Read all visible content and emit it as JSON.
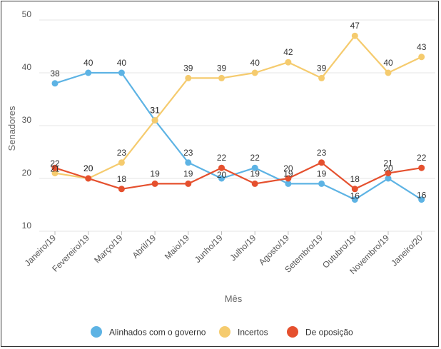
{
  "chart_data": {
    "type": "line",
    "title": "",
    "xlabel": "Mês",
    "ylabel": "Senadores",
    "ylim": [
      10,
      50
    ],
    "yticks": [
      10,
      20,
      30,
      40,
      50
    ],
    "grid": "horizontal",
    "legend_position": "bottom",
    "categories": [
      "Janeiro/19",
      "Fevereiro/19",
      "Março/19",
      "Abril/19",
      "Maio/19",
      "Junho/19",
      "Julho/19",
      "Agosto/19",
      "Setembro/19",
      "Outubro/19",
      "Novembro/19",
      "Janeiro/20"
    ],
    "series": [
      {
        "name": "Alinhados com o governo",
        "color": "#5DB3E4",
        "values": [
          38,
          40,
          40,
          31,
          23,
          20,
          22,
          19,
          19,
          16,
          20,
          16
        ]
      },
      {
        "name": "Incertos",
        "color": "#F5CB6E",
        "values": [
          21,
          20,
          23,
          31,
          39,
          39,
          40,
          42,
          39,
          47,
          40,
          43
        ]
      },
      {
        "name": "De oposição",
        "color": "#E5502E",
        "values": [
          22,
          20,
          18,
          19,
          19,
          22,
          19,
          20,
          23,
          18,
          21,
          22
        ]
      }
    ]
  }
}
